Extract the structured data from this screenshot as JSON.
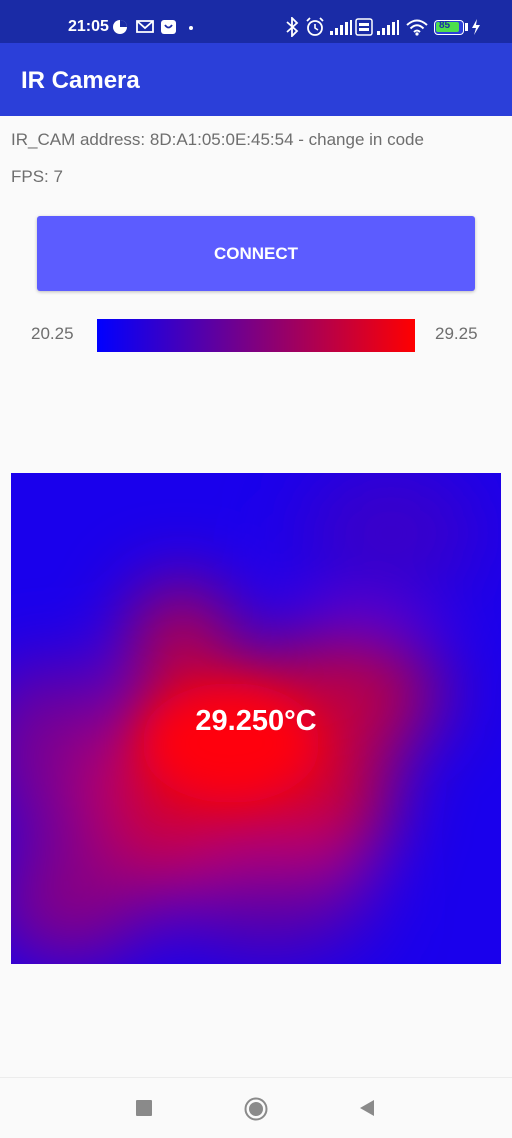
{
  "status_bar": {
    "time": "21:05",
    "battery": "85",
    "icons": [
      "data-saver-icon",
      "gmail-icon",
      "shopping-icon",
      "dot-icon",
      "bluetooth-icon",
      "alarm-icon",
      "signal-icon",
      "volte-icon",
      "signal-icon",
      "wifi-icon",
      "battery-icon",
      "charging-icon"
    ]
  },
  "app_bar": {
    "title": "IR Camera"
  },
  "info": {
    "address": "IR_CAM address: 8D:A1:05:0E:45:54 - change in code",
    "fps": "FPS: 7"
  },
  "connect_button": {
    "label": "CONNECT"
  },
  "scale": {
    "min": "20.25",
    "max": "29.25",
    "min_color": "#0000ff",
    "max_color": "#ff0000"
  },
  "heatmap": {
    "center_temp": "29.250°C"
  },
  "nav": {
    "icons": [
      "recents-icon",
      "home-icon",
      "back-icon"
    ]
  }
}
